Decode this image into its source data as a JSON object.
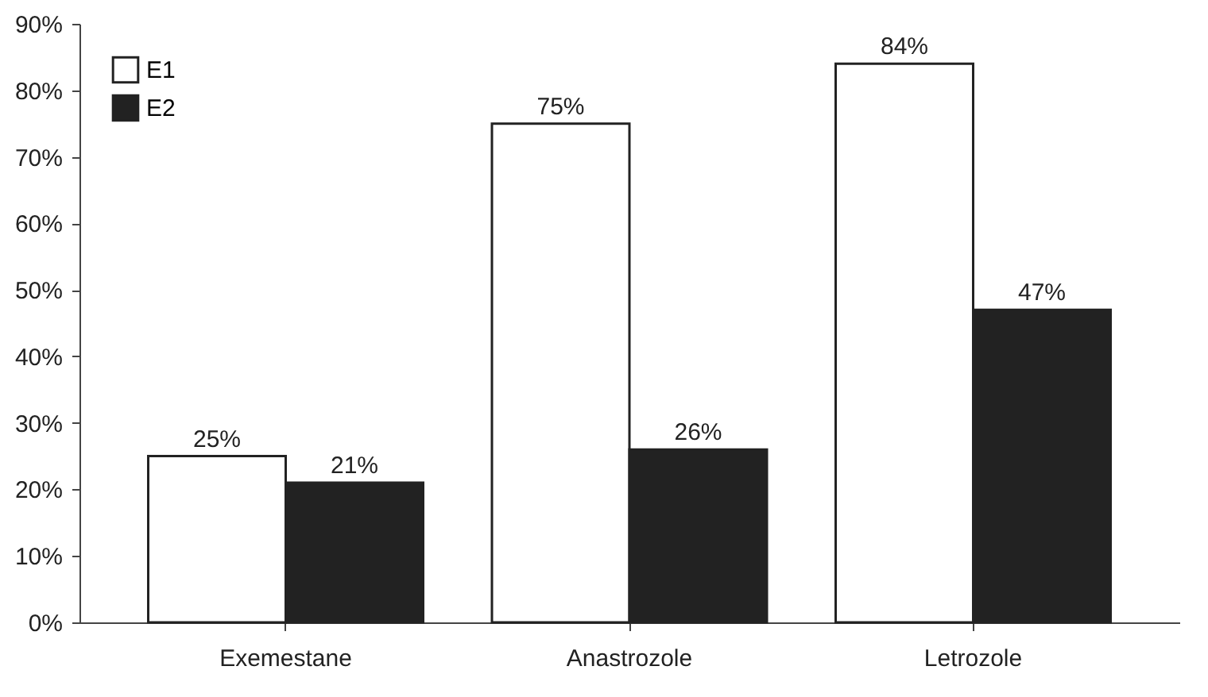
{
  "chart_data": {
    "type": "bar",
    "categories": [
      "Exemestane",
      "Anastrozole",
      "Letrozole"
    ],
    "series": [
      {
        "name": "E1",
        "color": "#ffffff",
        "values": [
          25,
          75,
          84
        ],
        "value_labels": [
          "25%",
          "75%",
          "84%"
        ]
      },
      {
        "name": "E2",
        "color": "#222222",
        "values": [
          21,
          26,
          47
        ],
        "value_labels": [
          "21%",
          "26%",
          "47%"
        ]
      }
    ],
    "ylim": [
      0,
      90
    ],
    "yticks": [
      {
        "value": 0,
        "label": "0%"
      },
      {
        "value": 10,
        "label": "10%"
      },
      {
        "value": 20,
        "label": "20%"
      },
      {
        "value": 30,
        "label": "30%"
      },
      {
        "value": 40,
        "label": "40%"
      },
      {
        "value": 50,
        "label": "50%"
      },
      {
        "value": 60,
        "label": "60%"
      },
      {
        "value": 70,
        "label": "70%"
      },
      {
        "value": 80,
        "label": "80%"
      },
      {
        "value": 90,
        "label": "90%"
      }
    ],
    "grid": false,
    "legend": "top left"
  }
}
